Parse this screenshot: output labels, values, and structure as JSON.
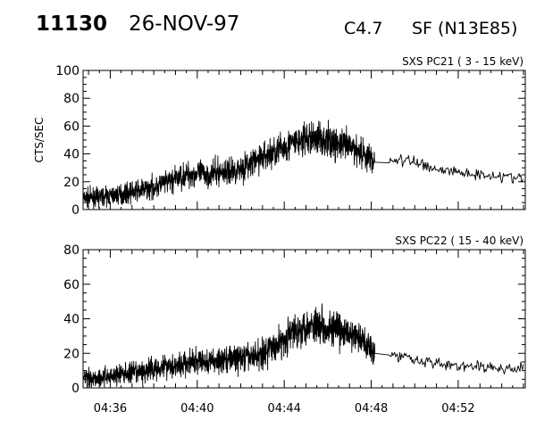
{
  "header": {
    "event_number": "11130",
    "date": "26-NOV-97",
    "flare_class": "C4.7",
    "location": "SF (N13E85)"
  },
  "chart_data": [
    {
      "type": "line",
      "title": "SXS PC21  (  3 - 15 keV)",
      "ylabel": "CTS/SEC",
      "ylim": [
        0,
        100
      ],
      "yticks": [
        0,
        20,
        40,
        60,
        80,
        100
      ],
      "xlim": [
        "04:34:45",
        "04:55:05"
      ],
      "xticks": [
        "04:36",
        "04:40",
        "04:44",
        "04:48",
        "04:52"
      ],
      "grid": false,
      "series": [
        {
          "style": "noisy high-cadence count rate; sparse smooth segment after 04:48:10",
          "x": [
            "04:34:45",
            "04:35:30",
            "04:36:30",
            "04:37:30",
            "04:38:00",
            "04:38:30",
            "04:39:00",
            "04:39:30",
            "04:40:00",
            "04:40:30",
            "04:41:00",
            "04:41:30",
            "04:42:00",
            "04:42:30",
            "04:43:00",
            "04:43:30",
            "04:44:00",
            "04:44:30",
            "04:45:00",
            "04:45:30",
            "04:46:00",
            "04:46:30",
            "04:47:00",
            "04:47:30",
            "04:48:00",
            "04:48:10",
            "04:48:30",
            "04:49:00",
            "04:49:30",
            "04:50:00",
            "04:50:30",
            "04:51:00",
            "04:51:30",
            "04:52:00",
            "04:52:30",
            "04:53:00",
            "04:53:30",
            "04:54:00",
            "04:54:30",
            "04:55:00"
          ],
          "values": [
            8,
            9,
            11,
            14,
            16,
            19,
            22,
            25,
            26,
            25,
            27,
            27,
            30,
            33,
            38,
            41,
            45,
            48,
            50,
            52,
            49,
            47,
            45,
            42,
            36,
            34,
            35,
            36,
            35,
            34,
            32,
            29,
            28,
            27,
            26,
            25,
            25,
            24,
            23,
            22
          ]
        }
      ]
    },
    {
      "type": "line",
      "title": "SXS PC22  ( 15 - 40 keV)",
      "ylabel": "",
      "ylim": [
        0,
        80
      ],
      "yticks": [
        0,
        20,
        40,
        60,
        80
      ],
      "xlim": [
        "04:34:45",
        "04:55:05"
      ],
      "xticks": [
        "04:36",
        "04:40",
        "04:44",
        "04:48",
        "04:52"
      ],
      "grid": false,
      "series": [
        {
          "style": "noisy high-cadence count rate; sparse smooth segment after 04:48:10",
          "x": [
            "04:34:45",
            "04:35:30",
            "04:36:30",
            "04:37:30",
            "04:38:00",
            "04:38:30",
            "04:39:00",
            "04:39:30",
            "04:40:00",
            "04:40:30",
            "04:41:00",
            "04:41:30",
            "04:42:00",
            "04:42:30",
            "04:43:00",
            "04:43:30",
            "04:44:00",
            "04:44:30",
            "04:45:00",
            "04:45:30",
            "04:46:00",
            "04:46:30",
            "04:47:00",
            "04:47:30",
            "04:48:00",
            "04:48:10",
            "04:48:30",
            "04:49:00",
            "04:49:30",
            "04:50:00",
            "04:50:30",
            "04:51:00",
            "04:51:30",
            "04:52:00",
            "04:52:30",
            "04:53:00",
            "04:53:30",
            "04:54:00",
            "04:54:30",
            "04:55:00"
          ],
          "values": [
            6,
            6,
            8,
            9,
            11,
            13,
            13,
            14,
            15,
            15,
            16,
            17,
            17,
            18,
            20,
            24,
            28,
            33,
            36,
            37,
            35,
            33,
            31,
            28,
            24,
            20,
            19,
            19,
            18,
            17,
            16,
            14,
            13,
            13,
            12,
            12,
            12,
            11,
            11,
            11
          ]
        }
      ]
    }
  ]
}
